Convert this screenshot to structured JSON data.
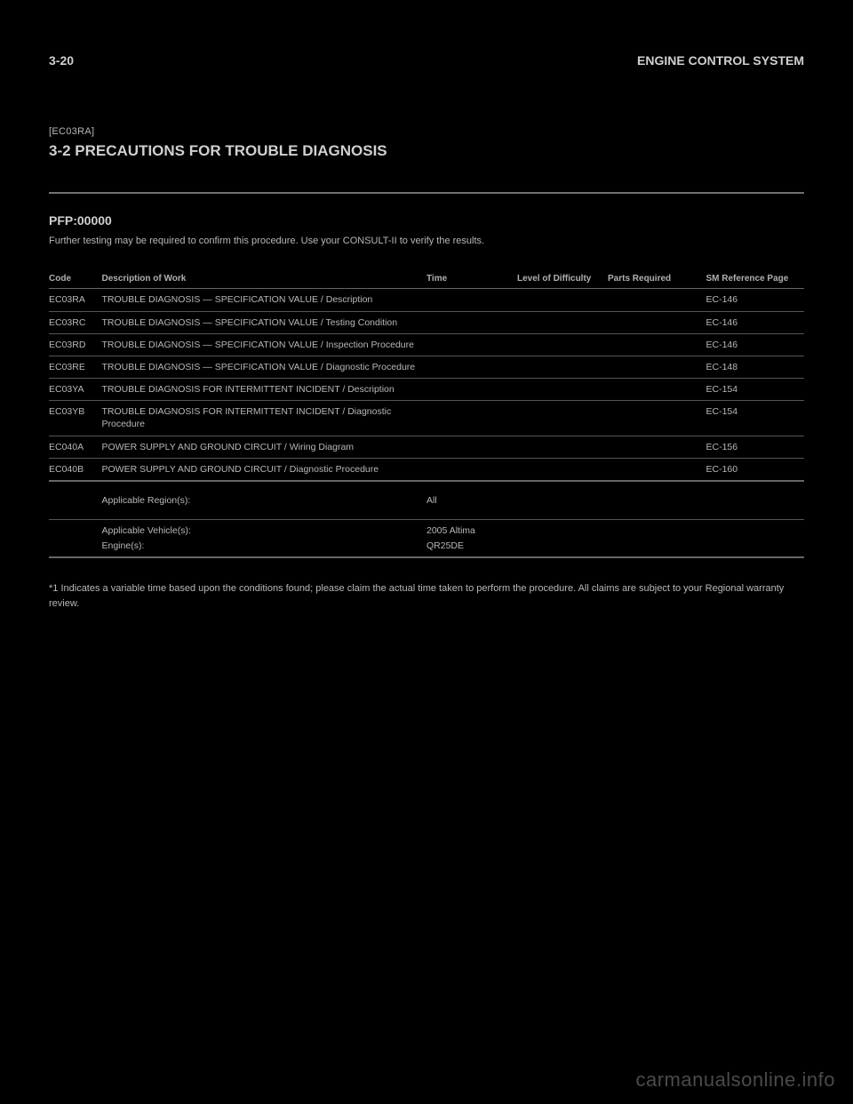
{
  "page": {
    "header_left": "3-20",
    "header_right": "ENGINE CONTROL SYSTEM",
    "section_label": "[EC03RA]",
    "section_title": "3-2 PRECAUTIONS FOR TROUBLE DIAGNOSIS"
  },
  "pfp": {
    "title": "PFP:00000",
    "desc": "Further testing may be required to confirm this procedure. Use your CONSULT-II to verify the results."
  },
  "table": {
    "headers": {
      "code": "Code",
      "desc": "Description of Work",
      "time": "Time",
      "diff": "Level of Difficulty",
      "parts": "Parts Required",
      "ref": "SM Reference Page"
    },
    "rows": [
      {
        "code": "EC03RA",
        "desc": "TROUBLE DIAGNOSIS — SPECIFICATION VALUE / Description",
        "time": "",
        "diff": "",
        "parts": "",
        "ref": "EC-146"
      },
      {
        "code": "EC03RC",
        "desc": "TROUBLE DIAGNOSIS — SPECIFICATION VALUE / Testing Condition",
        "time": "",
        "diff": "",
        "parts": "",
        "ref": "EC-146"
      },
      {
        "code": "EC03RD",
        "desc": "TROUBLE DIAGNOSIS — SPECIFICATION VALUE / Inspection Procedure",
        "time": "",
        "diff": "",
        "parts": "",
        "ref": "EC-146"
      },
      {
        "code": "EC03RE",
        "desc": "TROUBLE DIAGNOSIS — SPECIFICATION VALUE / Diagnostic Procedure",
        "time": "",
        "diff": "",
        "parts": "",
        "ref": "EC-148"
      },
      {
        "code": "EC03YA",
        "desc": "TROUBLE DIAGNOSIS FOR INTERMITTENT INCIDENT / Description",
        "time": "",
        "diff": "",
        "parts": "",
        "ref": "EC-154"
      },
      {
        "code": "EC03YB",
        "desc": "TROUBLE DIAGNOSIS FOR INTERMITTENT INCIDENT / Diagnostic Procedure",
        "time": "",
        "diff": "",
        "parts": "",
        "ref": "EC-154"
      },
      {
        "code": "EC040A",
        "desc": "POWER SUPPLY AND GROUND CIRCUIT / Wiring Diagram",
        "time": "",
        "diff": "",
        "parts": "",
        "ref": "EC-156"
      },
      {
        "code": "EC040B",
        "desc": "POWER SUPPLY AND GROUND CIRCUIT / Diagnostic Procedure",
        "time": "",
        "diff": "",
        "parts": "",
        "ref": "EC-160"
      }
    ],
    "region": {
      "desc": "Applicable Region(s):",
      "value": "All"
    },
    "multi": {
      "line1": {
        "desc": "Applicable Vehicle(s):",
        "value": "2005 Altima"
      },
      "line2": {
        "desc": "Engine(s):",
        "value": "QR25DE"
      }
    }
  },
  "footnote": "*1 Indicates a variable time based upon the conditions found; please claim the actual time taken to perform the procedure. All claims are subject to your Regional warranty review.",
  "watermark": "carmanualsonline.info",
  "colors": {
    "bg": "#000000",
    "text_primary": "#d0d0d0",
    "text_secondary": "#b8b8b8",
    "border": "#666666",
    "watermark": "#4a4a4a"
  }
}
